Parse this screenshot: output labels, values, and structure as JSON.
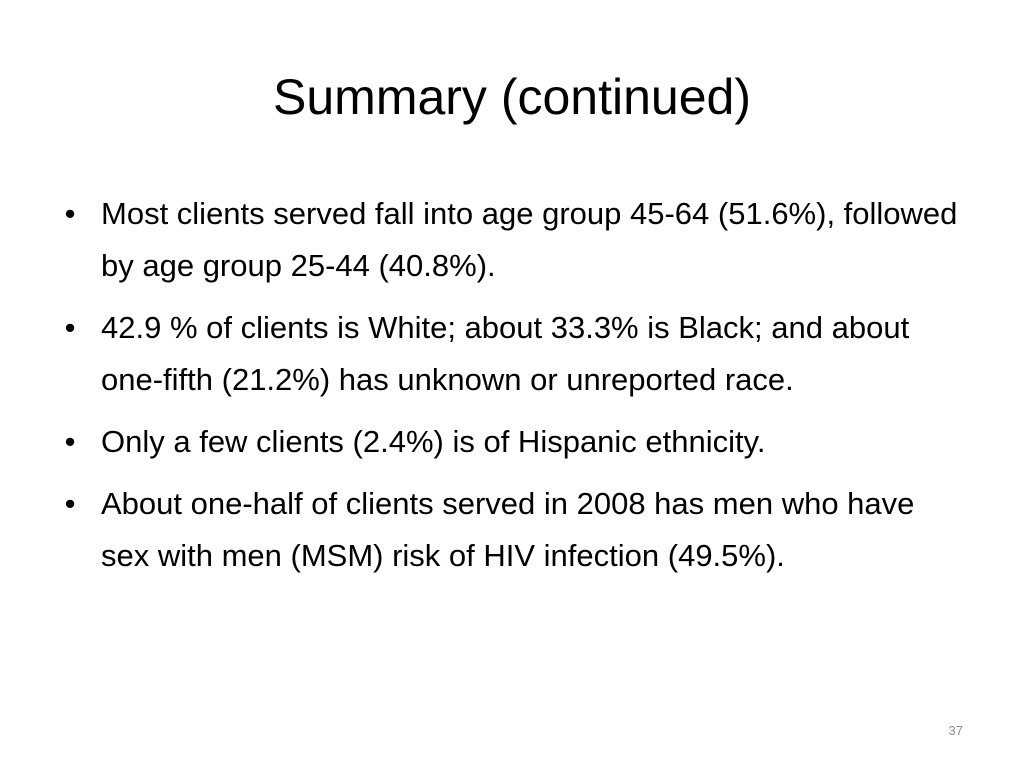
{
  "slide": {
    "title": "Summary (continued)",
    "bullet_symbol": "•",
    "bullets": [
      "Most clients served fall into age group 45-64 (51.6%), followed by age group 25-44 (40.8%).",
      "42.9 % of clients is White; about 33.3% is Black; and about one-fifth (21.2%) has unknown or unreported race.",
      "Only a few clients (2.4%) is of Hispanic ethnicity.",
      "About one-half of clients served in 2008 has men who have sex with men (MSM) risk of HIV infection (49.5%)."
    ],
    "page_number": "37"
  }
}
